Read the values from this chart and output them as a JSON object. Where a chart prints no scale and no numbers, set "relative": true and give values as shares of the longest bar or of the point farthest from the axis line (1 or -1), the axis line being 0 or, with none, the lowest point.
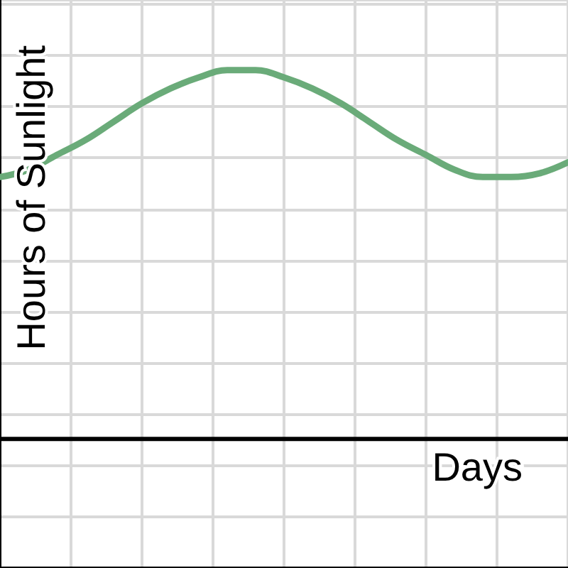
{
  "chart_data": {
    "type": "line",
    "relative": true,
    "xlabel": "Days",
    "ylabel": "Hours of Sunlight",
    "categories": [
      null,
      null,
      null,
      null,
      null,
      null,
      null,
      null,
      null,
      null,
      null,
      null,
      null,
      null,
      null,
      null,
      null,
      null,
      null,
      null,
      null
    ],
    "series": [
      {
        "color": "#6aab79",
        "values": [
          0.71,
          0.73,
          0.77,
          0.81,
          0.86,
          0.91,
          0.95,
          0.98,
          1,
          1,
          0.98,
          0.95,
          0.91,
          0.86,
          0.81,
          0.77,
          0.73,
          0.71,
          0.71,
          0.72,
          0.75
        ]
      }
    ],
    "grid": true,
    "marker": "none",
    "line_style": "solid"
  }
}
